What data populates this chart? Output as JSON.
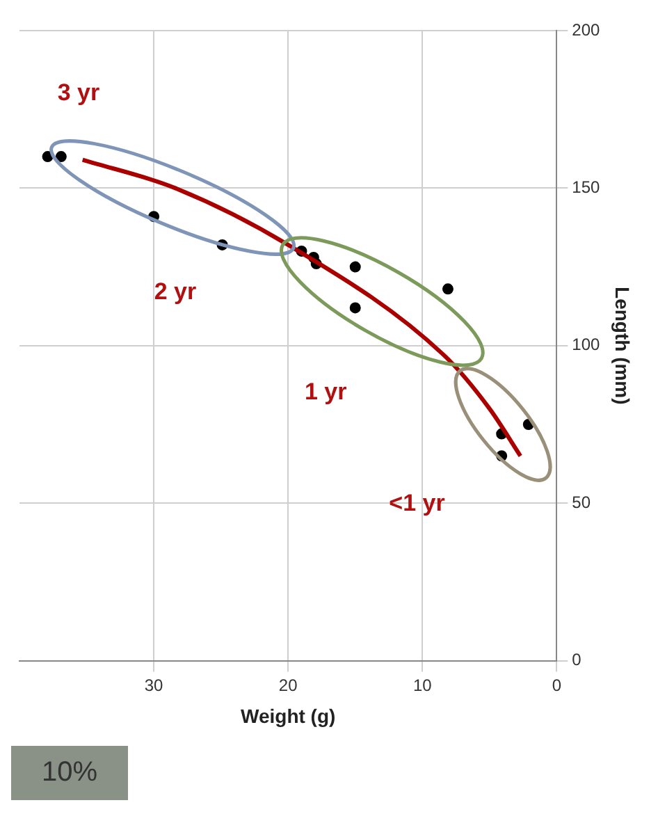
{
  "chart_data": {
    "type": "scatter",
    "xlabel": "Weight (g)",
    "ylabel": "Length (mm)",
    "xlim": [
      40,
      0
    ],
    "xticks": [
      0,
      10,
      20,
      30
    ],
    "ylim": [
      0,
      200
    ],
    "yticks": [
      0,
      50,
      100,
      150,
      200
    ],
    "grid": true,
    "legend": false,
    "series": [
      {
        "type": "scatter",
        "color": "#000000",
        "marker": "circle",
        "x": [
          37.9,
          36.9,
          30.0,
          24.9,
          19.0,
          18.1,
          17.9,
          15.0,
          15.0,
          8.1,
          2.1,
          4.1,
          4.1
        ],
        "values": [
          160,
          160,
          141,
          132,
          130,
          128,
          126,
          125,
          112,
          118,
          75,
          72,
          65
        ]
      },
      {
        "type": "line",
        "color": "#aa0000",
        "marker": "none",
        "line_style": "solid",
        "x": [
          2.7,
          5.0,
          8.4,
          20.0,
          28.4,
          35.3
        ],
        "values": [
          65,
          80,
          97,
          132,
          150,
          159
        ]
      }
    ],
    "annotations": [
      "3 yr",
      "2 yr",
      "1 yr",
      "<1 yr",
      "10%"
    ]
  }
}
